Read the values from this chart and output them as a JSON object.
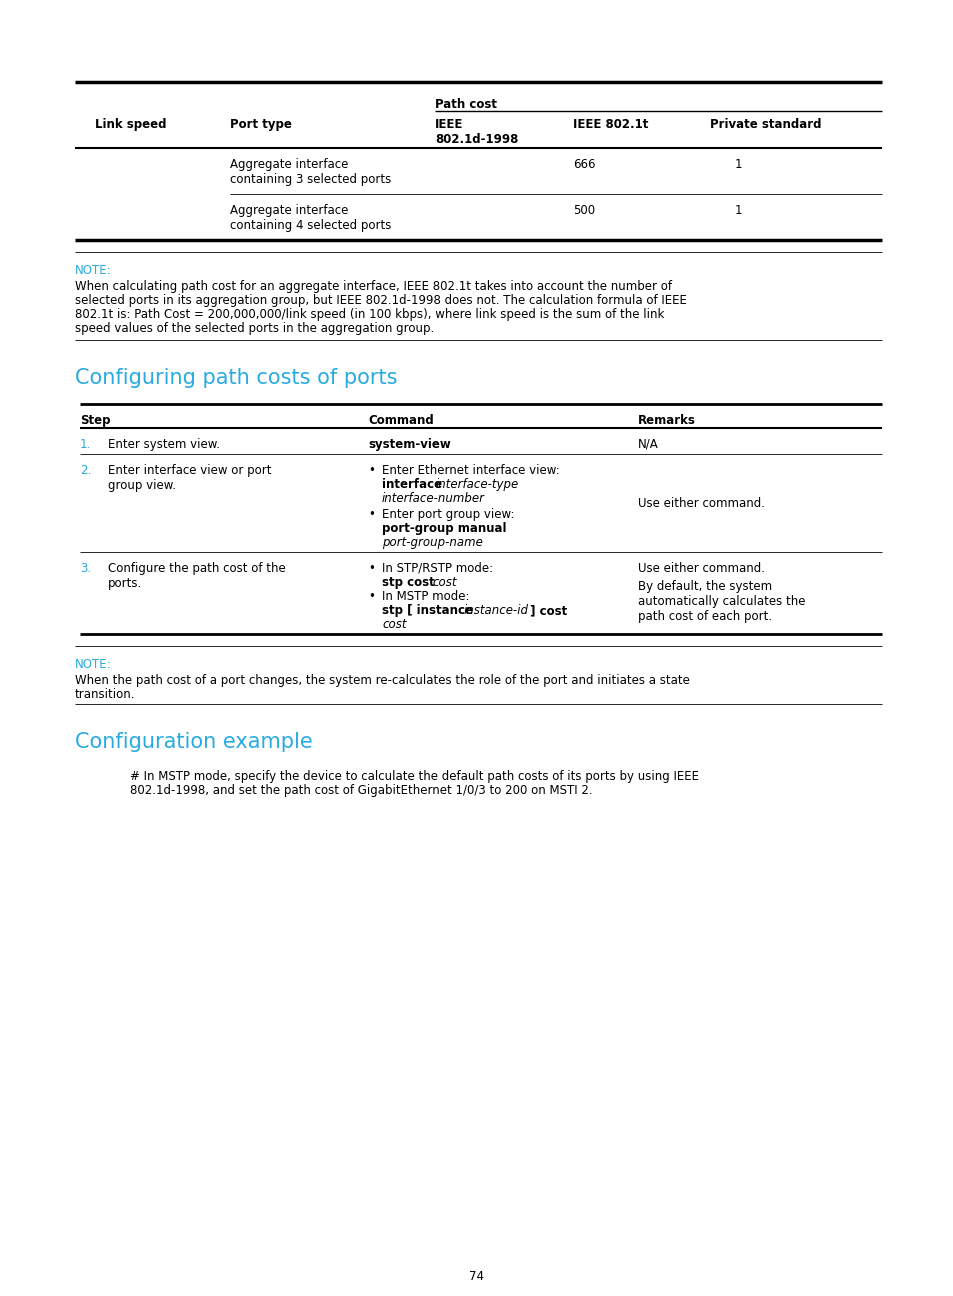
{
  "bg_color": "#ffffff",
  "cyan_color": "#29abe2",
  "black": "#000000",
  "page_number": "74",
  "section1_title": "Configuring path costs of ports",
  "section2_title": "Configuration example",
  "note1_label": "NOTE:",
  "note1_text": "When calculating path cost for an aggregate interface, IEEE 802.1t takes into account the number of selected ports in its aggregation group, but IEEE 802.1d-1998 does not. The calculation formula of IEEE 802.1t is: Path Cost = 200,000,000/link speed (in 100 kbps), where link speed is the sum of the link speed values of the selected ports in the aggregation group.",
  "note2_label": "NOTE:",
  "note2_text": "When the path cost of a port changes, the system re-calculates the role of the port and initiates a state transition.",
  "config_text_line1": "# In MSTP mode, specify the device to calculate the default path costs of its ports by using IEEE",
  "config_text_line2": "802.1d-1998, and set the path cost of GigabitEthernet 1/0/3 to 200 on MSTI 2."
}
